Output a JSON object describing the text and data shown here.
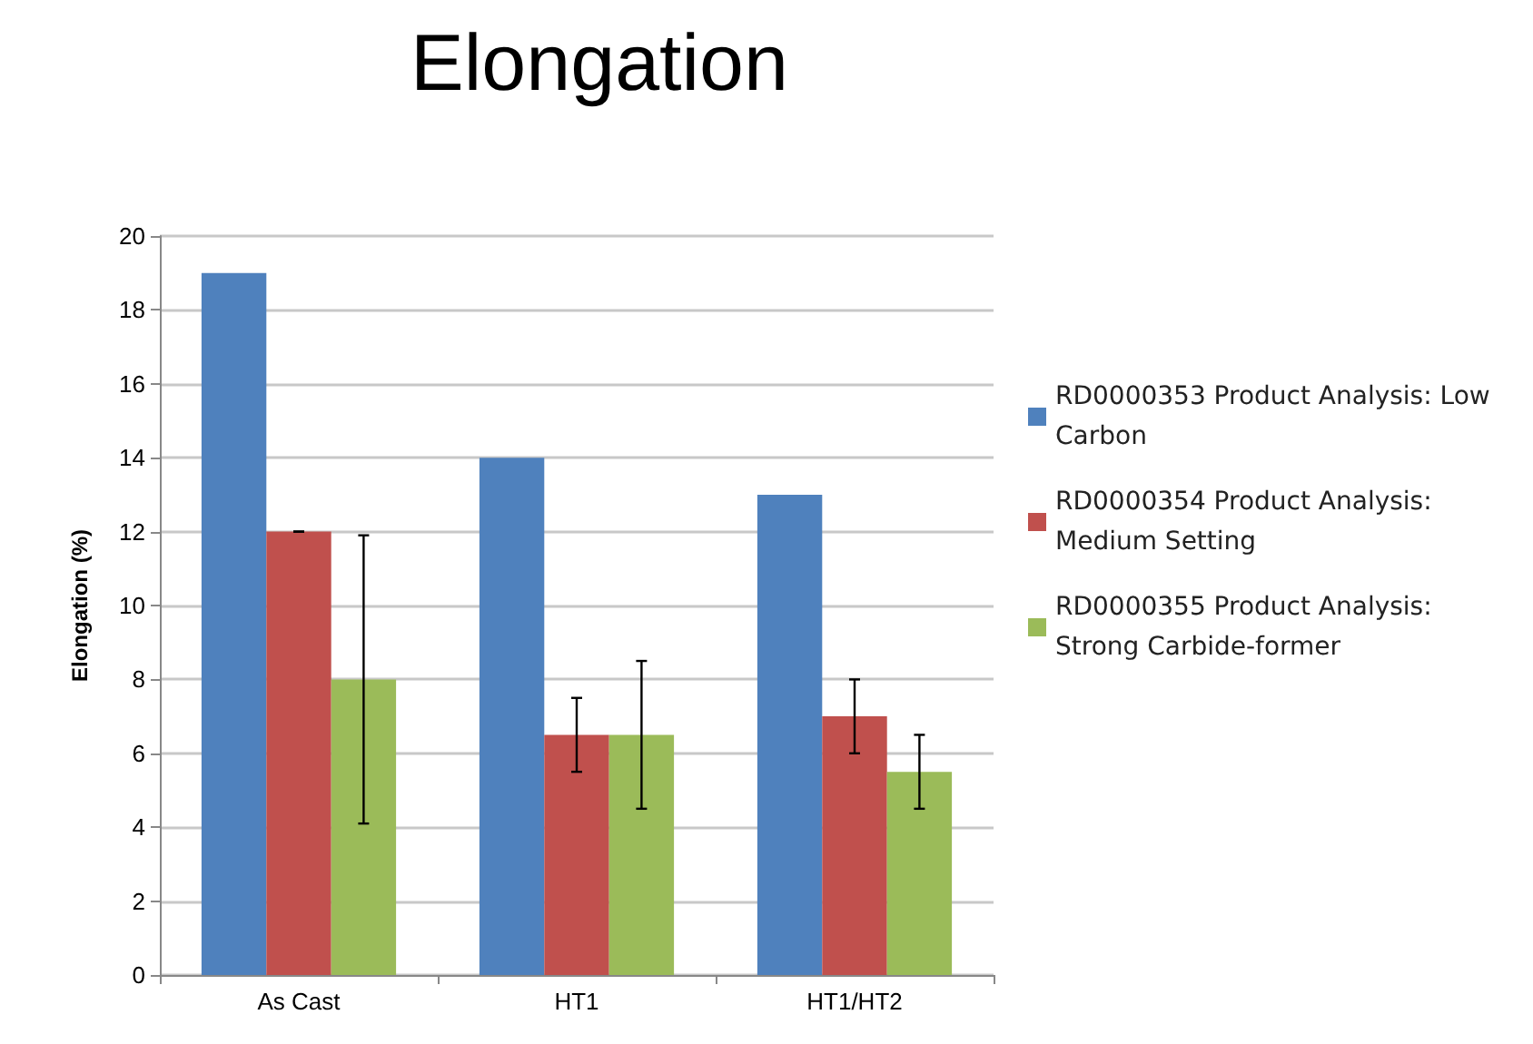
{
  "chart_data": {
    "type": "bar",
    "title": "Elongation",
    "ylabel": "Elongation (%)",
    "categories": [
      "As Cast",
      "HT1",
      "HT1/HT2"
    ],
    "series": [
      {
        "name": "RD0000353 Product Analysis: Low Carbon",
        "color": "#4f81bd",
        "values": [
          19,
          14,
          13
        ]
      },
      {
        "name": "RD0000354 Product Analysis: Medium Setting",
        "color": "#c0504d",
        "values": [
          12,
          6.5,
          7
        ],
        "errors": [
          0,
          1,
          1
        ]
      },
      {
        "name": "RD0000355 Product Analysis: Strong Carbide-former",
        "color": "#9bbb59",
        "values": [
          8,
          6.5,
          5.5
        ],
        "errors": [
          3.9,
          2,
          1
        ]
      }
    ],
    "ylim": [
      0,
      20
    ],
    "yticks": [
      0,
      2,
      4,
      6,
      8,
      10,
      12,
      14,
      16,
      18,
      20
    ],
    "grid": "y",
    "legend": "right"
  }
}
